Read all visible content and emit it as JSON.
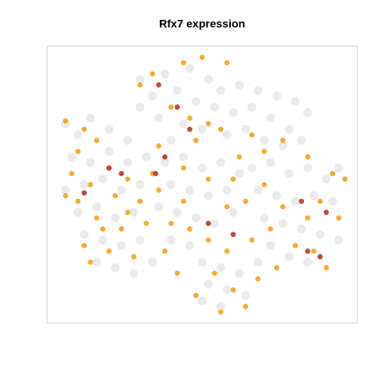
{
  "chart_data": {
    "type": "scatter",
    "title": "Rfx7 expression",
    "xlim": [
      0,
      100
    ],
    "ylim": [
      0,
      100
    ],
    "series": [
      {
        "color": "#d6d6d6",
        "x": [
          30,
          38,
          46,
          52,
          56,
          34,
          42,
          48,
          54,
          60,
          36,
          44,
          50,
          58,
          40,
          30,
          62,
          68,
          74,
          80,
          84,
          66,
          72,
          78,
          64,
          70,
          76,
          82,
          6,
          10,
          14,
          20,
          26,
          8,
          14,
          20,
          26,
          32,
          6,
          12,
          18,
          24,
          30,
          10,
          16,
          22,
          28,
          12,
          18,
          24,
          30,
          16,
          22,
          28,
          34,
          38,
          44,
          50,
          56,
          62,
          40,
          46,
          52,
          58,
          36,
          42,
          48,
          54,
          60,
          40,
          46,
          66,
          72,
          78,
          84,
          90,
          94,
          68,
          74,
          80,
          86,
          92,
          70,
          76,
          82,
          88,
          94,
          72,
          78,
          84,
          50,
          56,
          62,
          68,
          52,
          58,
          64,
          56,
          50
        ],
        "values": [
          88,
          90,
          92,
          88,
          84,
          82,
          84,
          80,
          78,
          76,
          74,
          72,
          70,
          68,
          66,
          78,
          86,
          84,
          82,
          80,
          76,
          78,
          74,
          70,
          70,
          66,
          64,
          66,
          72,
          68,
          74,
          70,
          66,
          60,
          58,
          62,
          58,
          60,
          48,
          50,
          52,
          48,
          50,
          40,
          42,
          38,
          40,
          32,
          30,
          28,
          30,
          22,
          20,
          18,
          22,
          58,
          60,
          56,
          58,
          54,
          50,
          48,
          46,
          48,
          42,
          40,
          38,
          36,
          40,
          30,
          28,
          56,
          58,
          54,
          56,
          52,
          56,
          48,
          46,
          44,
          46,
          44,
          38,
          36,
          34,
          32,
          30,
          28,
          24,
          22,
          22,
          20,
          18,
          22,
          14,
          12,
          10,
          6,
          8
        ]
      },
      {
        "color": "#f5a623",
        "x": [
          6,
          12,
          16,
          10,
          8,
          14,
          6,
          20,
          26,
          22,
          10,
          16,
          24,
          12,
          20,
          14,
          28,
          32,
          30,
          34,
          36,
          30,
          34,
          44,
          50,
          58,
          40,
          46,
          52,
          56,
          48,
          62,
          66,
          70,
          76,
          84,
          92,
          96,
          88,
          94,
          84,
          76,
          70,
          64,
          58,
          52,
          44,
          40,
          46,
          52,
          58,
          54,
          60,
          64,
          56,
          48,
          66,
          72,
          80,
          86,
          90,
          38,
          42,
          26,
          18,
          36,
          44,
          60,
          74,
          68
        ],
        "values": [
          73,
          70,
          66,
          62,
          54,
          50,
          46,
          56,
          52,
          46,
          44,
          38,
          34,
          28,
          26,
          22,
          24,
          36,
          44,
          54,
          64,
          86,
          90,
          94,
          96,
          94,
          78,
          74,
          72,
          70,
          66,
          60,
          68,
          62,
          66,
          60,
          54,
          52,
          44,
          38,
          38,
          42,
          50,
          44,
          42,
          52,
          44,
          36,
          34,
          30,
          26,
          18,
          12,
          6,
          4,
          10,
          30,
          34,
          28,
          26,
          20,
          26,
          18,
          40,
          34,
          48,
          56,
          52,
          20,
          16
        ]
      },
      {
        "color": "#b5452e",
        "x": [
          12,
          20,
          24,
          35,
          38,
          42,
          36,
          46,
          60,
          90,
          84,
          88,
          52,
          82
        ],
        "values": [
          47,
          56,
          54,
          54,
          60,
          78,
          86,
          70,
          32,
          40,
          26,
          24,
          36,
          44
        ]
      }
    ]
  }
}
